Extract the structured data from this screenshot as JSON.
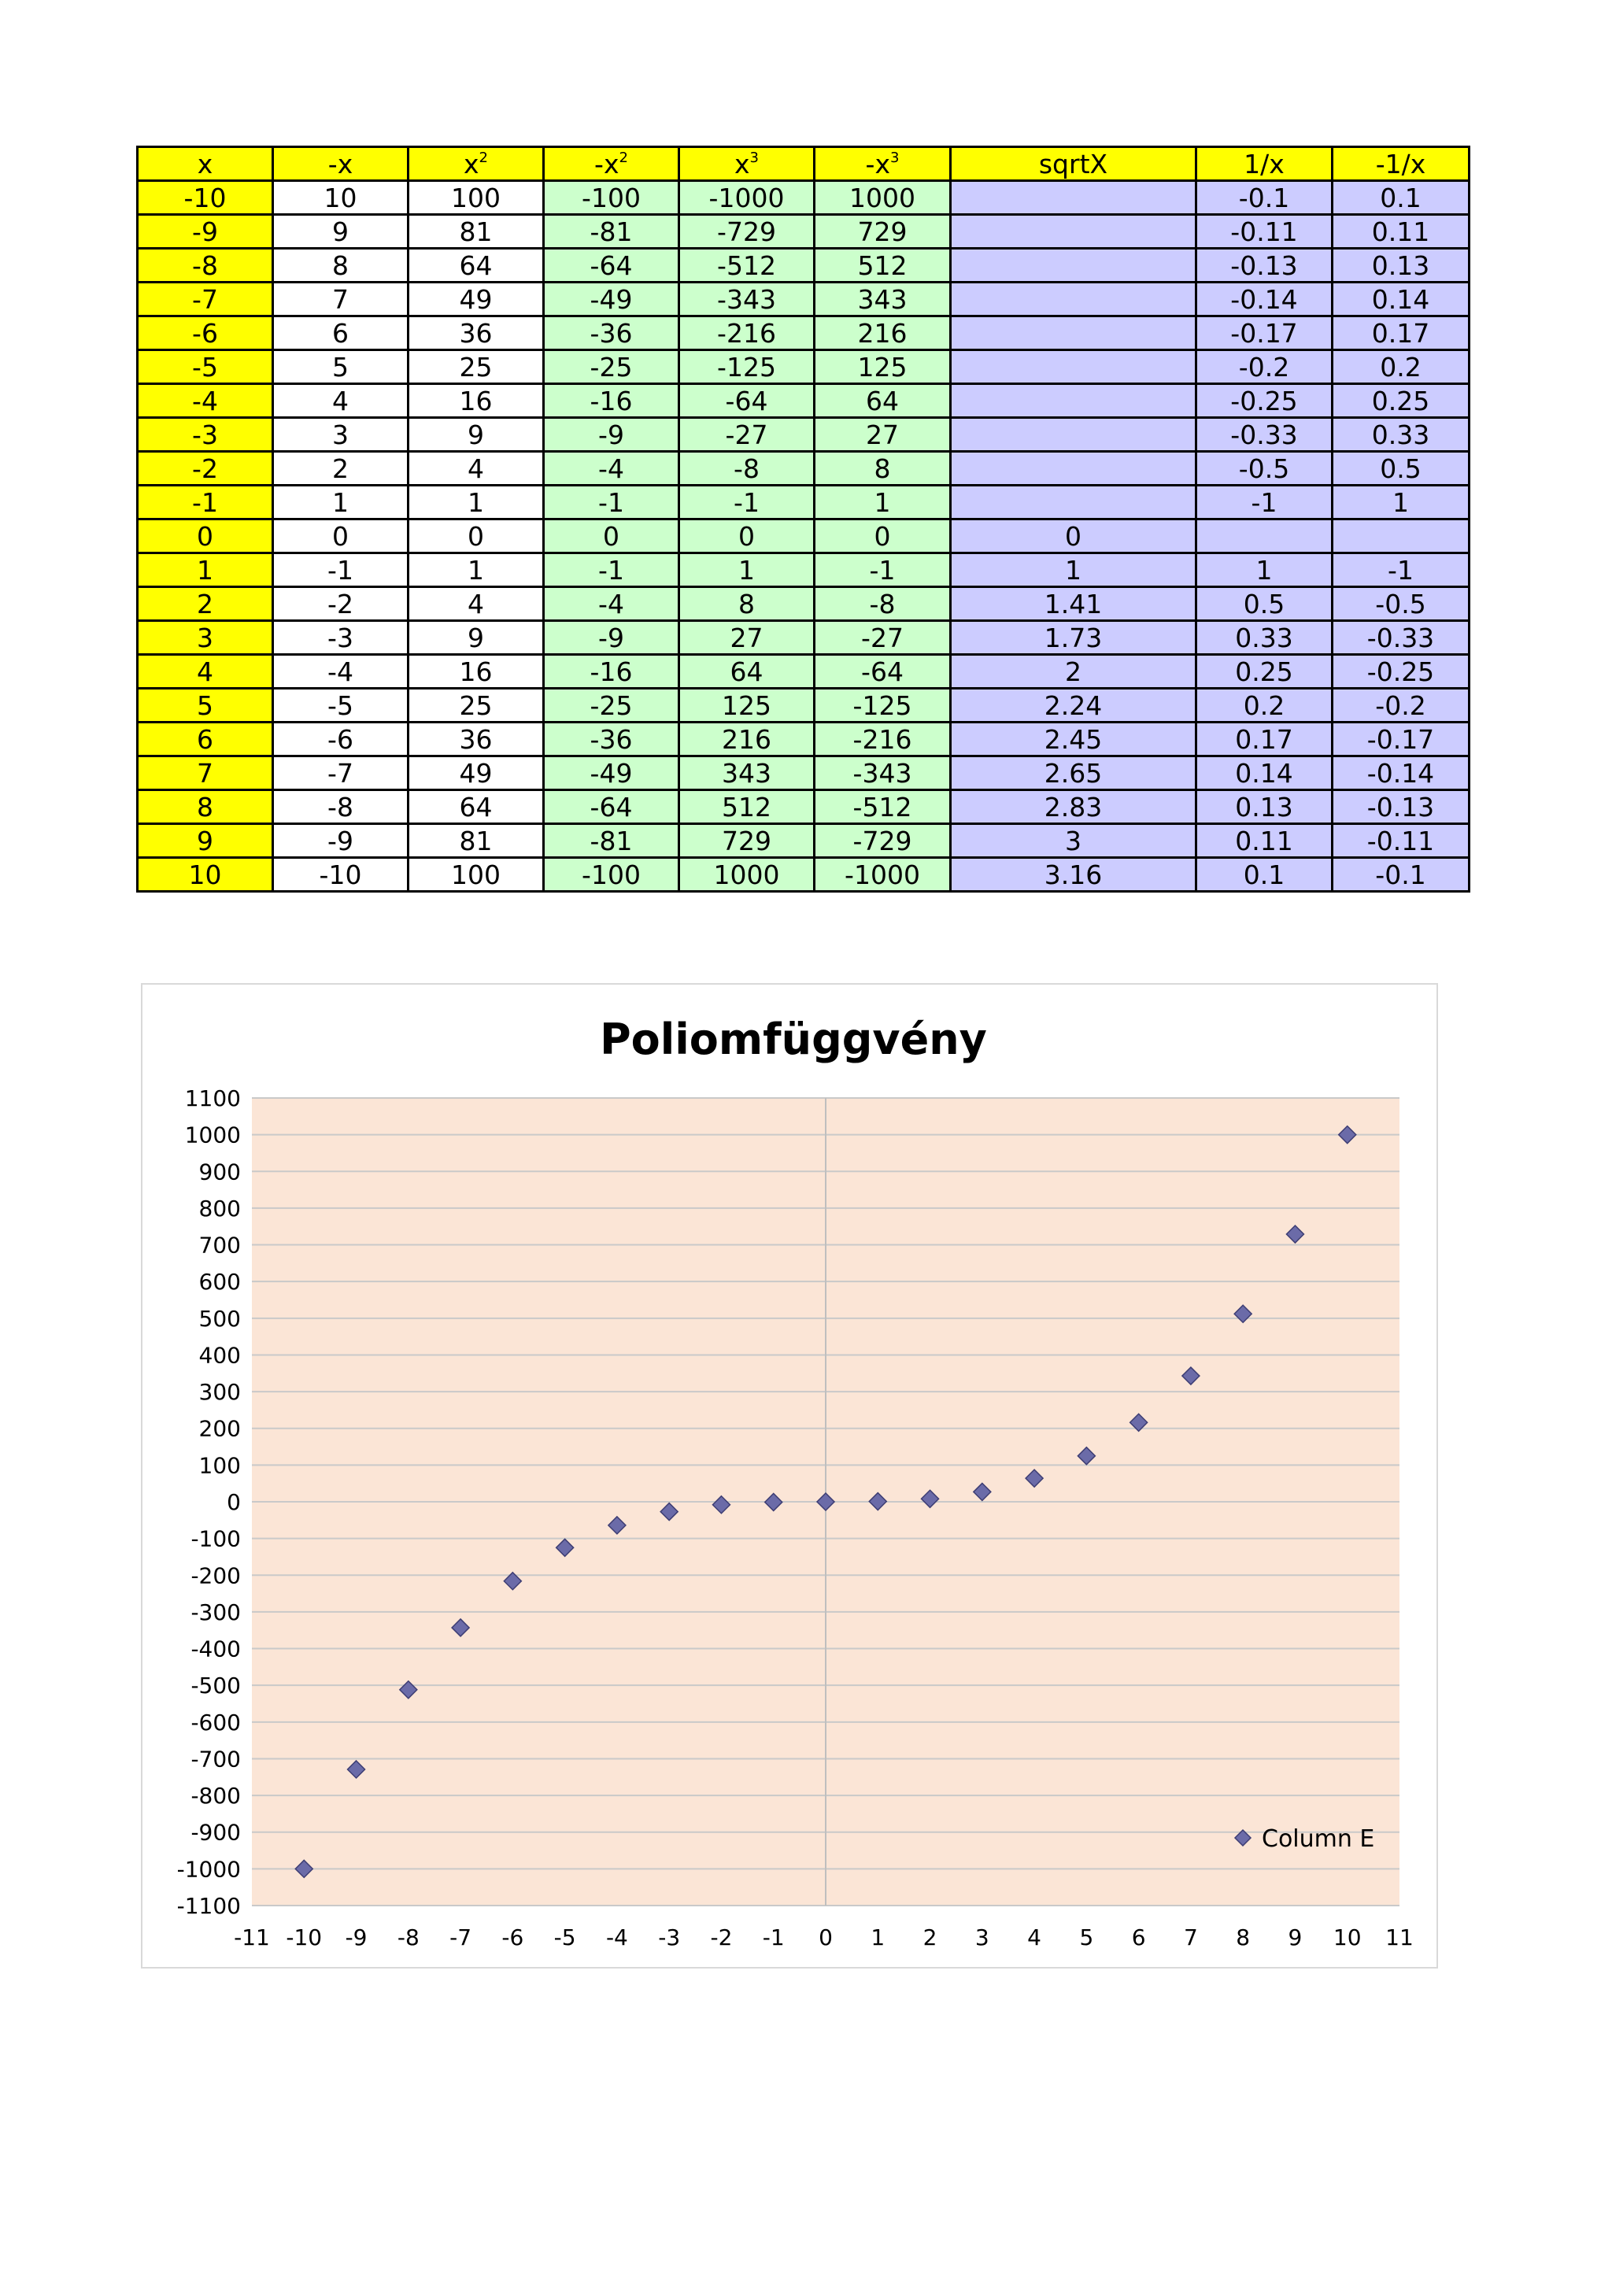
{
  "table": {
    "headers": [
      {
        "base": "x",
        "sup": ""
      },
      {
        "base": "-x",
        "sup": ""
      },
      {
        "base": "x",
        "sup": "2"
      },
      {
        "base": "-x",
        "sup": "2"
      },
      {
        "base": "x",
        "sup": "3"
      },
      {
        "base": "-x",
        "sup": "3"
      },
      {
        "base": "sqrtX",
        "sup": ""
      },
      {
        "base": "1/x",
        "sup": ""
      },
      {
        "base": "-1/x",
        "sup": ""
      }
    ],
    "column_colors": [
      "#ffff00",
      "#ffffff",
      "#ffffff",
      "#ccffcc",
      "#ccffcc",
      "#ccffcc",
      "#ccccff",
      "#ccccff",
      "#ccccff"
    ],
    "rows": [
      [
        "-10",
        "10",
        "100",
        "-100",
        "-1000",
        "1000",
        "",
        "-0.1",
        "0.1"
      ],
      [
        "-9",
        "9",
        "81",
        "-81",
        "-729",
        "729",
        "",
        "-0.11",
        "0.11"
      ],
      [
        "-8",
        "8",
        "64",
        "-64",
        "-512",
        "512",
        "",
        "-0.13",
        "0.13"
      ],
      [
        "-7",
        "7",
        "49",
        "-49",
        "-343",
        "343",
        "",
        "-0.14",
        "0.14"
      ],
      [
        "-6",
        "6",
        "36",
        "-36",
        "-216",
        "216",
        "",
        "-0.17",
        "0.17"
      ],
      [
        "-5",
        "5",
        "25",
        "-25",
        "-125",
        "125",
        "",
        "-0.2",
        "0.2"
      ],
      [
        "-4",
        "4",
        "16",
        "-16",
        "-64",
        "64",
        "",
        "-0.25",
        "0.25"
      ],
      [
        "-3",
        "3",
        "9",
        "-9",
        "-27",
        "27",
        "",
        "-0.33",
        "0.33"
      ],
      [
        "-2",
        "2",
        "4",
        "-4",
        "-8",
        "8",
        "",
        "-0.5",
        "0.5"
      ],
      [
        "-1",
        "1",
        "1",
        "-1",
        "-1",
        "1",
        "",
        "-1",
        "1"
      ],
      [
        "0",
        "0",
        "0",
        "0",
        "0",
        "0",
        "0",
        "",
        ""
      ],
      [
        "1",
        "-1",
        "1",
        "-1",
        "1",
        "-1",
        "1",
        "1",
        "-1"
      ],
      [
        "2",
        "-2",
        "4",
        "-4",
        "8",
        "-8",
        "1.41",
        "0.5",
        "-0.5"
      ],
      [
        "3",
        "-3",
        "9",
        "-9",
        "27",
        "-27",
        "1.73",
        "0.33",
        "-0.33"
      ],
      [
        "4",
        "-4",
        "16",
        "-16",
        "64",
        "-64",
        "2",
        "0.25",
        "-0.25"
      ],
      [
        "5",
        "-5",
        "25",
        "-25",
        "125",
        "-125",
        "2.24",
        "0.2",
        "-0.2"
      ],
      [
        "6",
        "-6",
        "36",
        "-36",
        "216",
        "-216",
        "2.45",
        "0.17",
        "-0.17"
      ],
      [
        "7",
        "-7",
        "49",
        "-49",
        "343",
        "-343",
        "2.65",
        "0.14",
        "-0.14"
      ],
      [
        "8",
        "-8",
        "64",
        "-64",
        "512",
        "-512",
        "2.83",
        "0.13",
        "-0.13"
      ],
      [
        "9",
        "-9",
        "81",
        "-81",
        "729",
        "-729",
        "3",
        "0.11",
        "-0.11"
      ],
      [
        "10",
        "-10",
        "100",
        "-100",
        "1000",
        "-1000",
        "3.16",
        "0.1",
        "-0.1"
      ]
    ]
  },
  "chart_data": {
    "type": "scatter",
    "title": "Poliomfüggvény",
    "xlabel": "",
    "ylabel": "",
    "xlim": [
      -11,
      11
    ],
    "ylim": [
      -1100,
      1100
    ],
    "x_ticks": [
      -11,
      -10,
      -9,
      -8,
      -7,
      -6,
      -5,
      -4,
      -3,
      -2,
      -1,
      0,
      1,
      2,
      3,
      4,
      5,
      6,
      7,
      8,
      9,
      10,
      11
    ],
    "y_ticks": [
      1100,
      1000,
      900,
      800,
      700,
      600,
      500,
      400,
      300,
      200,
      100,
      0,
      -100,
      -200,
      -300,
      -400,
      -500,
      -600,
      -700,
      -800,
      -900,
      -1000,
      -1100
    ],
    "grid": "horizontal",
    "legend_position": "bottom-right",
    "plot_background": "#fbe5d6",
    "marker": "diamond",
    "series": [
      {
        "name": "Column E",
        "color": "#6b6ba8",
        "x": [
          -10,
          -9,
          -8,
          -7,
          -6,
          -5,
          -4,
          -3,
          -2,
          -1,
          0,
          1,
          2,
          3,
          4,
          5,
          6,
          7,
          8,
          9,
          10
        ],
        "y": [
          -1000,
          -729,
          -512,
          -343,
          -216,
          -125,
          -64,
          -27,
          -8,
          -1,
          0,
          1,
          8,
          27,
          64,
          125,
          216,
          343,
          512,
          729,
          1000
        ]
      }
    ]
  }
}
